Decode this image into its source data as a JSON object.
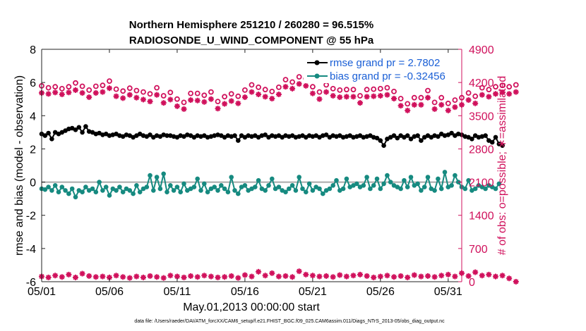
{
  "chart_data": {
    "type": "line",
    "title": "Northern Hemisphere 251210 / 260280 = 96.515%",
    "subtitle": "RADIOSONDE_U_WIND_COMPONENT @ 55 hPa",
    "xlabel": "May.01,2013 00:00:00 start",
    "ylabel": "rmse and bias (model - observation)",
    "ylabel_right": "# of obs: o=possible; ∗=assimilated",
    "ylim": [
      -6,
      8
    ],
    "ylim_right": [
      0,
      4900
    ],
    "xlim": [
      1,
      32
    ],
    "x_ticks": [
      {
        "value": 1,
        "label": "05/01"
      },
      {
        "value": 6,
        "label": "05/06"
      },
      {
        "value": 11,
        "label": "05/11"
      },
      {
        "value": 16,
        "label": "05/16"
      },
      {
        "value": 21,
        "label": "05/21"
      },
      {
        "value": 26,
        "label": "05/26"
      },
      {
        "value": 31,
        "label": "05/31"
      }
    ],
    "y_ticks": [
      "-6",
      "-4",
      "-2",
      "0",
      "2",
      "4",
      "6",
      "8"
    ],
    "y_right_ticks": [
      "0",
      "700",
      "1400",
      "2100",
      "2800",
      "3500",
      "4200",
      "4900"
    ],
    "zero_line": 0,
    "grid": false,
    "legend": {
      "placement": "top-right",
      "entries": [
        "rmse grand pr = 2.7802",
        "bias grand pr = -0.32456"
      ]
    },
    "colors": {
      "rmse": "#000000",
      "bias": "#168a80",
      "obs": "#d0115c",
      "legend_text": "#1a5fd6",
      "zero_line": "#aaaaaa"
    },
    "series": [
      {
        "name": "rmse",
        "axis": "left",
        "x_start": 1,
        "x_step": 0.25,
        "values": [
          2.9,
          2.8,
          2.95,
          2.6,
          3.0,
          2.9,
          3.0,
          3.1,
          3.2,
          3.25,
          3.15,
          3.3,
          3.0,
          3.35,
          3.05,
          3.0,
          2.9,
          2.95,
          2.85,
          2.9,
          2.8,
          2.85,
          2.9,
          2.8,
          2.75,
          2.85,
          2.8,
          2.7,
          2.8,
          2.9,
          2.8,
          2.75,
          2.85,
          2.7,
          2.8,
          2.75,
          2.85,
          2.8,
          2.8,
          2.75,
          2.7,
          2.8,
          2.75,
          2.85,
          2.8,
          2.7,
          2.8,
          2.75,
          2.8,
          2.7,
          2.75,
          2.8,
          2.85,
          2.8,
          2.7,
          2.8,
          2.75,
          2.8,
          2.5,
          2.8,
          2.7,
          2.8,
          2.75,
          2.8,
          2.7,
          2.8,
          2.85,
          2.7,
          2.8,
          2.75,
          2.8,
          2.7,
          2.8,
          2.75,
          2.8,
          2.7,
          2.75,
          2.8,
          2.7,
          2.8,
          2.75,
          2.8,
          2.7,
          2.8,
          2.85,
          2.7,
          2.8,
          2.75,
          2.8,
          2.7,
          2.75,
          2.8,
          2.7,
          2.75,
          2.8,
          2.7,
          2.75,
          2.8,
          2.7,
          2.65,
          2.5,
          2.2,
          2.6,
          2.7,
          2.8,
          2.65,
          2.8,
          2.7,
          2.8,
          2.6,
          2.75,
          2.8,
          2.5,
          2.7,
          2.8,
          2.7,
          2.8,
          2.75,
          2.9,
          2.8,
          2.85,
          2.95,
          2.8,
          2.9,
          2.85,
          2.75,
          2.7,
          2.6,
          2.8,
          2.7,
          2.75,
          2.8,
          2.5,
          2.4,
          2.7,
          2.3,
          2.2
        ]
      },
      {
        "name": "bias",
        "axis": "left",
        "x_start": 1,
        "x_step": 0.25,
        "values": [
          -0.4,
          -0.45,
          -0.3,
          -0.5,
          -0.2,
          -0.6,
          -0.3,
          -0.5,
          -0.7,
          -0.4,
          -0.9,
          -0.5,
          -0.6,
          -0.3,
          -0.5,
          -0.4,
          -0.6,
          0.0,
          -0.5,
          -0.3,
          -0.8,
          -0.4,
          -0.5,
          -0.3,
          -0.6,
          -0.4,
          -0.5,
          -0.7,
          -0.2,
          -0.6,
          -0.4,
          -0.3,
          0.4,
          -0.5,
          0.3,
          -0.4,
          0.5,
          -0.6,
          -0.2,
          -0.5,
          -0.3,
          -0.6,
          -0.1,
          -0.5,
          -0.4,
          -0.3,
          0.2,
          -0.5,
          -0.1,
          -0.6,
          -0.4,
          -0.3,
          -0.5,
          -0.2,
          -0.4,
          -0.6,
          0.3,
          -0.5,
          -0.7,
          -0.3,
          -0.2,
          -0.5,
          -0.4,
          -0.3,
          0.1,
          -0.4,
          -0.5,
          -0.2,
          0.2,
          -0.4,
          -0.3,
          -0.5,
          -0.6,
          -0.4,
          -0.2,
          -0.5,
          0.3,
          -0.4,
          -0.6,
          -0.1,
          -0.5,
          -0.3,
          -0.4,
          -0.7,
          -0.5,
          -0.4,
          -0.2,
          0.1,
          -0.5,
          -0.4,
          0.2,
          -0.3,
          -0.2,
          -0.1,
          -0.3,
          -0.2,
          0.3,
          -0.4,
          -0.2,
          0.2,
          -0.4,
          -0.1,
          0.4,
          0.0,
          -0.2,
          -0.3,
          -0.4,
          0.1,
          -0.3,
          0.3,
          -0.2,
          -0.1,
          -0.5,
          -0.3,
          0.3,
          -0.4,
          -0.5,
          0.2,
          -0.4,
          0.6,
          -0.3,
          -0.2,
          0.4,
          0.0,
          -0.3,
          -0.4,
          0.1,
          -0.5,
          -0.4,
          -0.2,
          -0.3,
          -0.4,
          -0.2,
          -0.3,
          -0.4,
          -0.1
        ]
      },
      {
        "name": "obs possible",
        "axis": "right",
        "marker": "o",
        "x_start": 1,
        "x_step": 0.5,
        "values": [
          4130,
          4090,
          4110,
          4070,
          4110,
          4190,
          4120,
          4040,
          4120,
          4140,
          4230,
          4060,
          4020,
          4080,
          4030,
          4000,
          3960,
          4090,
          3920,
          3990,
          3850,
          3780,
          3970,
          3970,
          3930,
          4000,
          3800,
          3900,
          3960,
          3910,
          4040,
          4150,
          4100,
          4050,
          4010,
          4100,
          4260,
          4210,
          4320,
          4280,
          4110,
          4000,
          4150,
          4070,
          4040,
          4050,
          4050,
          3920,
          4050,
          4060,
          4070,
          4090,
          4010,
          3860,
          3750,
          3880,
          3880,
          4030,
          3780,
          3880,
          3760,
          3830,
          3880,
          3980,
          3910,
          4090,
          4050,
          4110,
          4140,
          4110,
          4150
        ]
      },
      {
        "name": "obs assimilated",
        "axis": "right",
        "marker": "*",
        "x_start": 1,
        "x_step": 0.5,
        "values": [
          3980,
          3960,
          3990,
          3950,
          3990,
          4040,
          3980,
          3890,
          3980,
          4000,
          4080,
          3910,
          3870,
          3940,
          3880,
          3840,
          3800,
          3940,
          3770,
          3840,
          3700,
          3640,
          3830,
          3820,
          3790,
          3850,
          3650,
          3750,
          3810,
          3760,
          3890,
          4000,
          3950,
          3900,
          3860,
          3950,
          4110,
          4070,
          4170,
          4130,
          3970,
          3850,
          4000,
          3920,
          3890,
          3900,
          3900,
          3770,
          3900,
          3910,
          3920,
          3940,
          3860,
          3710,
          3610,
          3730,
          3730,
          3880,
          3640,
          3730,
          3610,
          3680,
          3730,
          3830,
          3760,
          3940,
          3900,
          3960,
          3990,
          3960,
          4000
        ]
      },
      {
        "name": "obs assimilated (low)",
        "axis": "right",
        "marker": "*",
        "x_start": 1,
        "x_step": 0.5,
        "values": [
          110,
          90,
          130,
          100,
          150,
          90,
          170,
          120,
          100,
          110,
          90,
          130,
          100,
          80,
          110,
          90,
          120,
          100,
          80,
          130,
          110,
          90,
          120,
          100,
          130,
          110,
          90,
          100,
          120,
          80,
          140,
          110,
          210,
          130,
          180,
          110,
          120,
          100,
          220,
          150,
          130,
          110,
          120,
          100,
          140,
          110,
          130,
          150,
          120,
          90,
          110,
          130,
          100,
          120,
          90,
          140,
          110,
          120,
          100,
          130,
          150,
          110,
          180,
          120,
          200,
          130,
          150,
          110,
          130,
          70,
          0
        ]
      }
    ]
  },
  "footer": {
    "file_note": "data file: /Users/raeder/DAI/ATM_forcXX/CAM6_setup/f.e21.FHIST_BGC.f09_025.CAM6assim.011/Diags_NTrS_2013-05/obs_diag_output.nc"
  }
}
